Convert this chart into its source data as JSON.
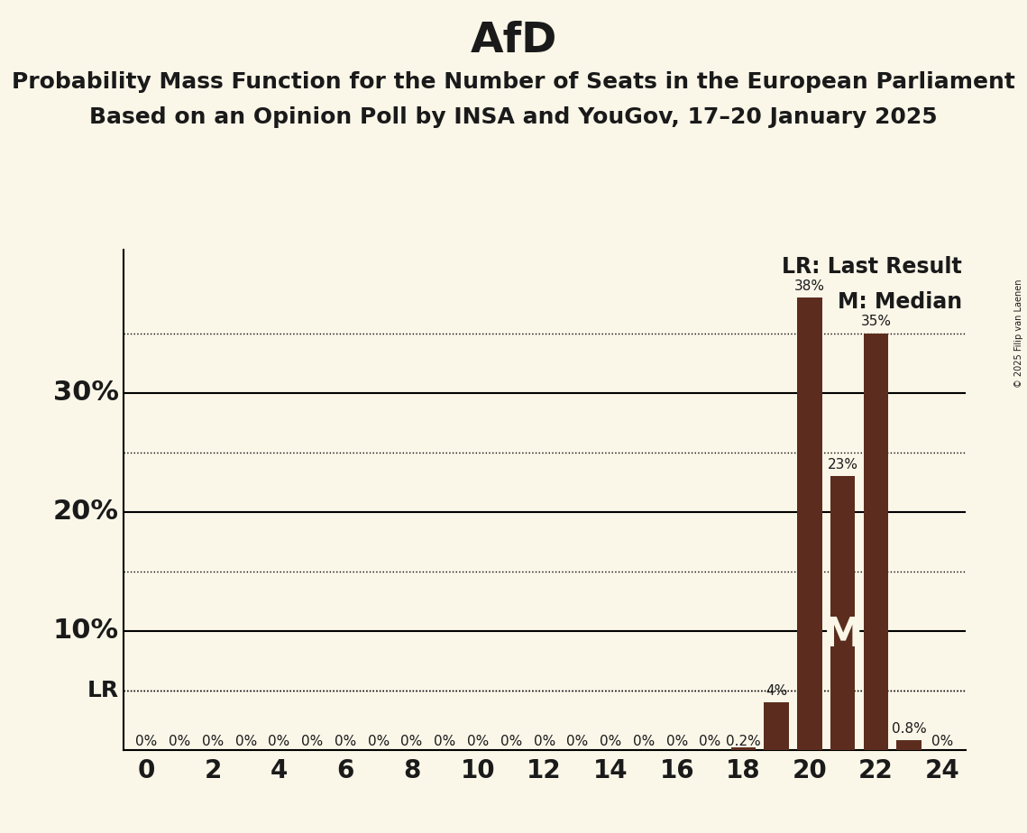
{
  "title": "AfD",
  "subtitle1": "Probability Mass Function for the Number of Seats in the European Parliament",
  "subtitle2": "Based on an Opinion Poll by INSA and YouGov, 17–20 January 2025",
  "copyright": "© 2025 Filip van Laenen",
  "background_color": "#faf6e8",
  "bar_color": "#5c2d1e",
  "seats": [
    0,
    1,
    2,
    3,
    4,
    5,
    6,
    7,
    8,
    9,
    10,
    11,
    12,
    13,
    14,
    15,
    16,
    17,
    18,
    19,
    20,
    21,
    22,
    23,
    24
  ],
  "probabilities": [
    0.0,
    0.0,
    0.0,
    0.0,
    0.0,
    0.0,
    0.0,
    0.0,
    0.0,
    0.0,
    0.0,
    0.0,
    0.0,
    0.0,
    0.0,
    0.0,
    0.0,
    0.0,
    0.002,
    0.04,
    0.38,
    0.23,
    0.35,
    0.008,
    0.0
  ],
  "labels": [
    "0%",
    "0%",
    "0%",
    "0%",
    "0%",
    "0%",
    "0%",
    "0%",
    "0%",
    "0%",
    "0%",
    "0%",
    "0%",
    "0%",
    "0%",
    "0%",
    "0%",
    "0%",
    "0.2%",
    "4%",
    "38%",
    "23%",
    "35%",
    "0.8%",
    "0%"
  ],
  "last_result_seat": 20,
  "median_seat": 21,
  "lr_line_y": 0.05,
  "xlim": [
    -0.7,
    24.7
  ],
  "ylim": [
    0,
    0.42
  ],
  "solid_yticks": [
    0.1,
    0.2,
    0.3
  ],
  "solid_ytick_labels": [
    "10%",
    "20%",
    "30%"
  ],
  "dotted_yticks": [
    0.05,
    0.15,
    0.25,
    0.35
  ],
  "xticks": [
    0,
    2,
    4,
    6,
    8,
    10,
    12,
    14,
    16,
    18,
    20,
    22,
    24
  ],
  "title_fontsize": 34,
  "subtitle_fontsize": 18,
  "label_fontsize": 11,
  "tick_fontsize": 20,
  "ytick_fontsize": 22,
  "legend_fontsize": 17,
  "bar_width": 0.75
}
